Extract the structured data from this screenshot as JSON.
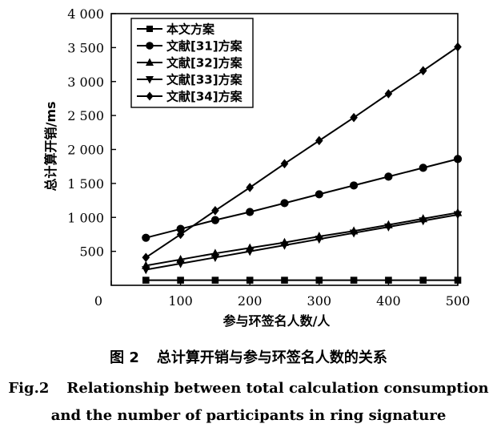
{
  "chart_data": {
    "type": "line",
    "xlabel": "参与环签名人数/人",
    "ylabel": "总计算开销/ms",
    "xlim": [
      0,
      500
    ],
    "ylim": [
      0,
      4000
    ],
    "x_ticks": [
      "0",
      "100",
      "200",
      "300",
      "400",
      "500"
    ],
    "y_ticks": [
      "500",
      "1 000",
      "1 500",
      "2 000",
      "2 500",
      "3 000",
      "3 500",
      "4 000"
    ],
    "x": [
      50,
      100,
      150,
      200,
      250,
      300,
      350,
      400,
      450,
      500
    ],
    "legend_position": "top-left",
    "series": [
      {
        "name": "本文方案",
        "marker": "square",
        "values": [
          75,
          75,
          75,
          75,
          75,
          75,
          75,
          75,
          75,
          75
        ]
      },
      {
        "name": "文献[31]方案",
        "marker": "circle",
        "values": [
          700,
          830,
          960,
          1080,
          1210,
          1340,
          1470,
          1600,
          1730,
          1860
        ]
      },
      {
        "name": "文献[32]方案",
        "marker": "triangle-up",
        "values": [
          290,
          380,
          470,
          550,
          630,
          720,
          800,
          890,
          980,
          1070
        ]
      },
      {
        "name": "文献[33]方案",
        "marker": "triangle-down",
        "values": [
          230,
          320,
          410,
          500,
          590,
          680,
          770,
          860,
          950,
          1040
        ]
      },
      {
        "name": "文献[34]方案",
        "marker": "diamond",
        "values": [
          410,
          750,
          1100,
          1440,
          1790,
          2130,
          2470,
          2820,
          3160,
          3510
        ]
      }
    ]
  },
  "caption": {
    "cn_number": "图 2",
    "cn_title": "总计算开销与参与环签名人数的关系",
    "en_number": "Fig.2",
    "en_title_line1": "Relationship between total calculation consumption",
    "en_title_line2": "and the number of participants in ring signature"
  }
}
